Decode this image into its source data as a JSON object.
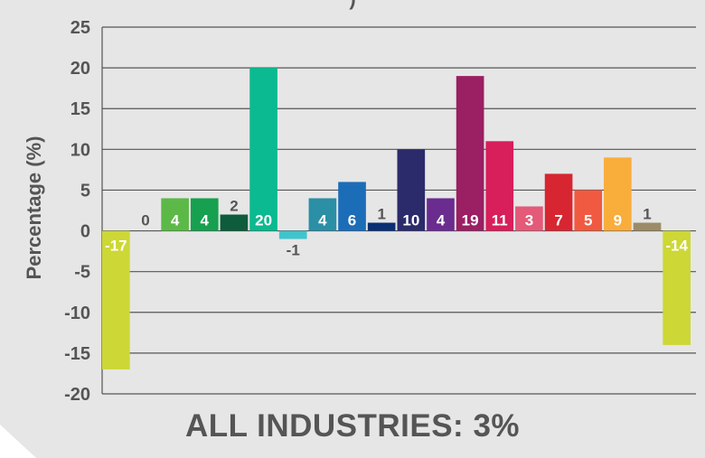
{
  "page": {
    "title_fragment": ")",
    "footer": "ALL INDUSTRIES: 3%",
    "panel_color": "#e6e6e6"
  },
  "chart_data": {
    "type": "bar",
    "title": "",
    "xlabel": "",
    "ylabel": "Percentage (%)",
    "ylim": [
      -20,
      25
    ],
    "yticks": [
      25,
      20,
      15,
      10,
      5,
      0,
      -5,
      -10,
      -15,
      -20
    ],
    "grid": true,
    "values": [
      -17,
      0,
      4,
      4,
      2,
      20,
      -1,
      4,
      6,
      1,
      10,
      4,
      19,
      11,
      3,
      7,
      5,
      9,
      1,
      -14
    ],
    "labels": [
      "-17",
      "0",
      "4",
      "4",
      "2",
      "20",
      "-1",
      "4",
      "6",
      "1",
      "10",
      "4",
      "19",
      "11",
      "3",
      "7",
      "5",
      "9",
      "1",
      "-14"
    ],
    "colors": [
      "#cdd735",
      "#cccccc",
      "#5cb947",
      "#16a04f",
      "#0d5c3b",
      "#0bba90",
      "#3fc4cc",
      "#2b8fa6",
      "#1c6db8",
      "#0b2f73",
      "#2b2a6b",
      "#6a2c8f",
      "#9a1f63",
      "#d81e5b",
      "#e45a79",
      "#d72631",
      "#f05a40",
      "#f9ad3b",
      "#9b8b68",
      "#cdd735"
    ],
    "label_colors": [
      "#ffffff",
      "#555555",
      "#ffffff",
      "#ffffff",
      "#555555",
      "#ffffff",
      "#555555",
      "#ffffff",
      "#ffffff",
      "#555555",
      "#ffffff",
      "#ffffff",
      "#ffffff",
      "#ffffff",
      "#ffffff",
      "#ffffff",
      "#ffffff",
      "#ffffff",
      "#555555",
      "#ffffff"
    ]
  }
}
